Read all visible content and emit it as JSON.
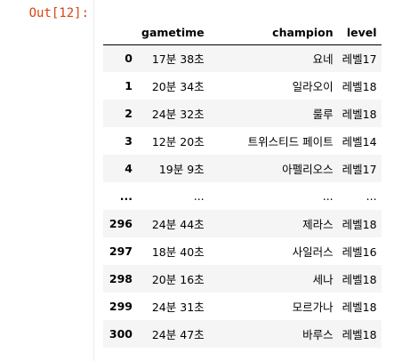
{
  "cell": {
    "prompt": "Out[12]:"
  },
  "dataframe": {
    "columns": [
      "",
      "gametime",
      "champion",
      "level"
    ],
    "rows": [
      [
        "0",
        "17분 38초",
        "요네",
        "레벨17"
      ],
      [
        "1",
        "20분 34초",
        "일라오이",
        "레벨18"
      ],
      [
        "2",
        "24분 32초",
        "룰루",
        "레벨18"
      ],
      [
        "3",
        "12분 20초",
        "트위스티드 페이트",
        "레벨14"
      ],
      [
        "4",
        "19분 9초",
        "아펠리오스",
        "레벨17"
      ],
      [
        "...",
        "...",
        "...",
        "..."
      ],
      [
        "296",
        "24분 44초",
        "제라스",
        "레벨18"
      ],
      [
        "297",
        "18분 40초",
        "사일러스",
        "레벨16"
      ],
      [
        "298",
        "20분 16초",
        "세나",
        "레벨18"
      ],
      [
        "299",
        "24분 31초",
        "모르가나",
        "레벨18"
      ],
      [
        "300",
        "24분 47초",
        "바루스",
        "레벨18"
      ]
    ]
  }
}
